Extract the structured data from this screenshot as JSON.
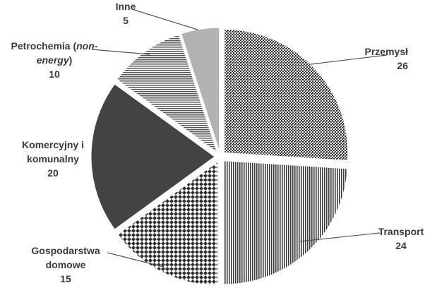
{
  "chart_data": {
    "type": "pie",
    "slices": [
      {
        "label": "Przemysł",
        "value": 26,
        "label_html": "Przemysł",
        "color": "#4a4a4a",
        "pattern": "dots-dense"
      },
      {
        "label": "Transport",
        "value": 24,
        "label_html": "Transport",
        "color": "#5a5a5a",
        "pattern": "vertical-lines"
      },
      {
        "label": "Gospodarstwa domowe",
        "value": 15,
        "label_lines": [
          "Gospodarstwa",
          "domowe"
        ],
        "color": "#4a4a4a",
        "pattern": "checker"
      },
      {
        "label": "Komercyjny i komunalny",
        "value": 20,
        "label_lines": [
          "Komercyjny i",
          "komunalny"
        ],
        "color": "#444444",
        "pattern": "solid"
      },
      {
        "label": "Petrochemia (non-energy)",
        "value": 10,
        "label_lines": [
          "Petrochemia (non-",
          "energy)"
        ],
        "color": "#777777",
        "pattern": "horizontal-lines"
      },
      {
        "label": "Inne",
        "value": 5,
        "label_lines": [
          "Inne"
        ],
        "color": "#b3b3b3",
        "pattern": "solid-light"
      }
    ],
    "start_angle_deg": 0,
    "direction": "clockwise",
    "exploded": true
  }
}
